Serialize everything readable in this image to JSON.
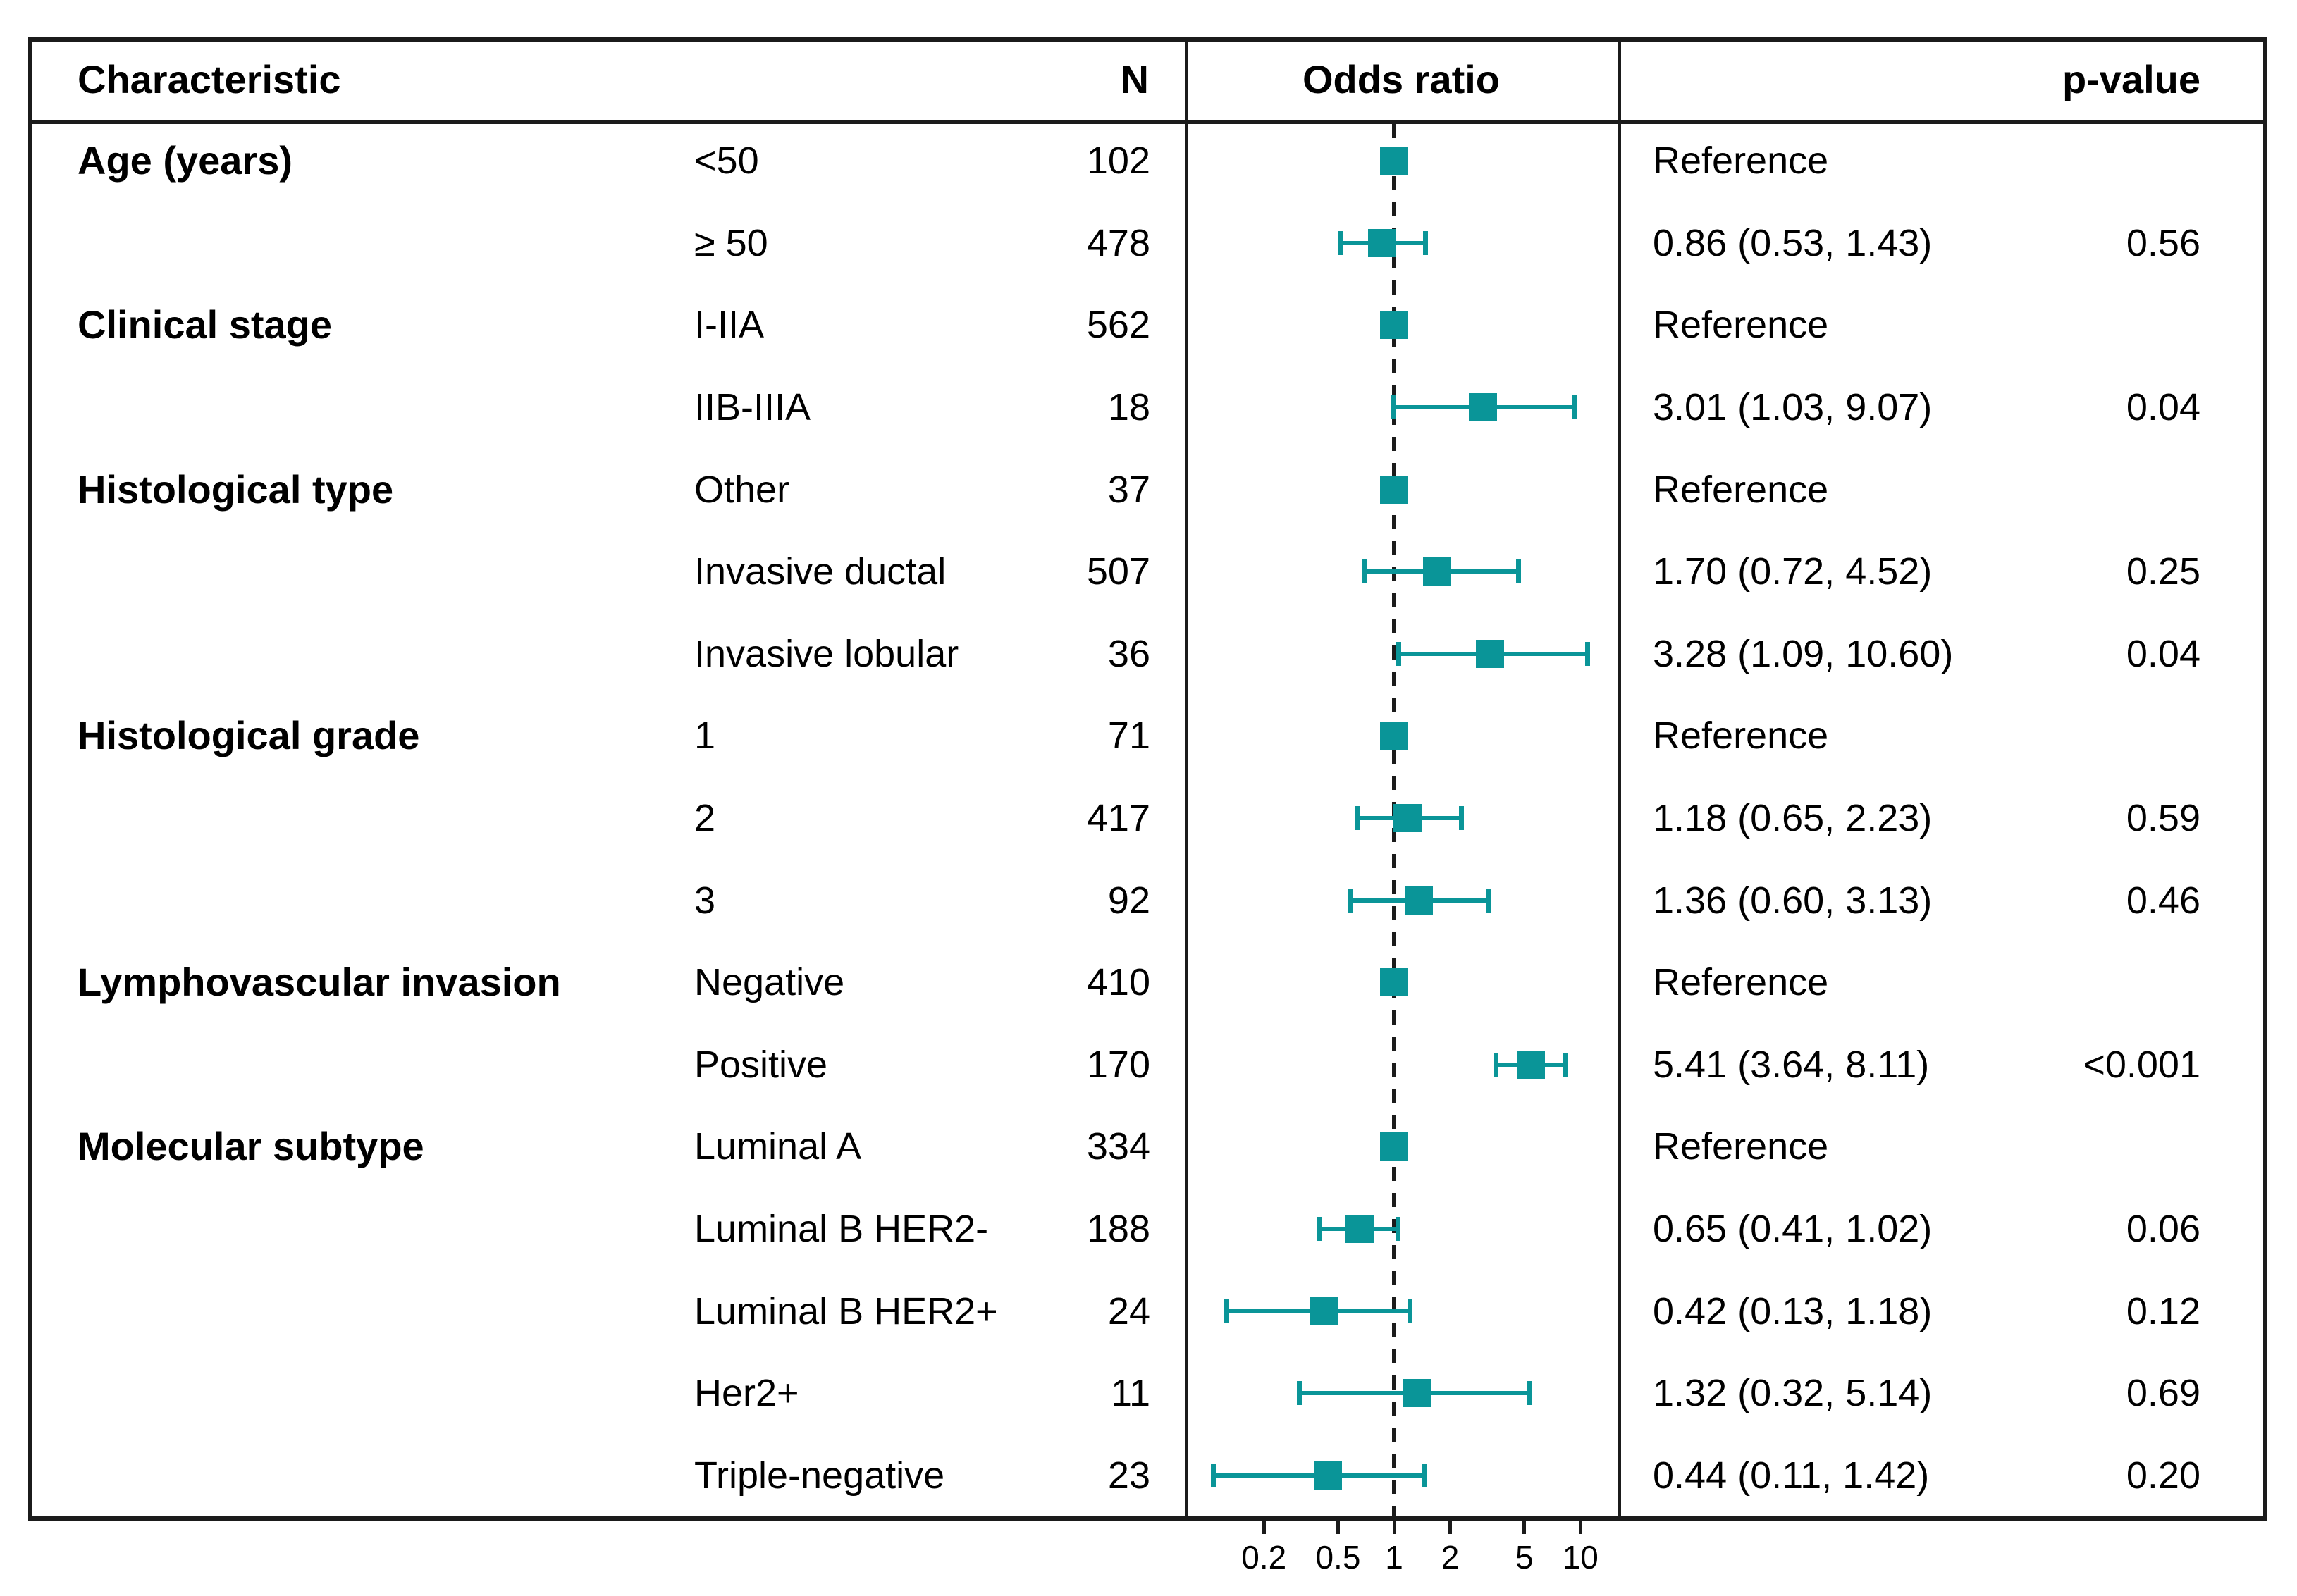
{
  "header": {
    "characteristic": "Characteristic",
    "n": "N",
    "odds_ratio": "Odds ratio",
    "p_value": "p-value"
  },
  "colors": {
    "marker_teal": "#0A9598",
    "line_black": "#1B1B1B",
    "text_black": "#000000",
    "background": "#FFFFFF"
  },
  "chart_data": {
    "type": "forest",
    "x_scale": "log",
    "reference_line": 1,
    "x_tick_values": [
      0.2,
      0.5,
      1,
      2,
      5,
      10
    ],
    "x_tick_labels": [
      "0.2",
      "0.5",
      "1",
      "2",
      "5",
      "10"
    ],
    "x_range": [
      0.1,
      12
    ],
    "legend": "none",
    "rows": [
      {
        "group": "Age (years)",
        "label": "<50",
        "n": 102,
        "or": null,
        "ci_low": null,
        "ci_high": null,
        "or_text": "Reference",
        "p": ""
      },
      {
        "group": "",
        "label": "≥ 50",
        "n": 478,
        "or": 0.86,
        "ci_low": 0.53,
        "ci_high": 1.43,
        "or_text": "0.86 (0.53, 1.43)",
        "p": "0.56"
      },
      {
        "group": "Clinical stage",
        "label": "I-IIA",
        "n": 562,
        "or": null,
        "ci_low": null,
        "ci_high": null,
        "or_text": "Reference",
        "p": ""
      },
      {
        "group": "",
        "label": "IIB-IIIA",
        "n": 18,
        "or": 3.01,
        "ci_low": 1.03,
        "ci_high": 9.07,
        "or_text": "3.01 (1.03, 9.07)",
        "p": "0.04"
      },
      {
        "group": "Histological type",
        "label": "Other",
        "n": 37,
        "or": null,
        "ci_low": null,
        "ci_high": null,
        "or_text": "Reference",
        "p": ""
      },
      {
        "group": "",
        "label": "Invasive ductal",
        "n": 507,
        "or": 1.7,
        "ci_low": 0.72,
        "ci_high": 4.52,
        "or_text": "1.70 (0.72, 4.52)",
        "p": "0.25"
      },
      {
        "group": "",
        "label": "Invasive lobular",
        "n": 36,
        "or": 3.28,
        "ci_low": 1.09,
        "ci_high": 10.6,
        "or_text": "3.28 (1.09, 10.60)",
        "p": "0.04"
      },
      {
        "group": "Histological grade",
        "label": "1",
        "n": 71,
        "or": null,
        "ci_low": null,
        "ci_high": null,
        "or_text": "Reference",
        "p": ""
      },
      {
        "group": "",
        "label": "2",
        "n": 417,
        "or": 1.18,
        "ci_low": 0.65,
        "ci_high": 2.23,
        "or_text": "1.18 (0.65, 2.23)",
        "p": "0.59"
      },
      {
        "group": "",
        "label": "3",
        "n": 92,
        "or": 1.36,
        "ci_low": 0.6,
        "ci_high": 3.13,
        "or_text": "1.36 (0.60, 3.13)",
        "p": "0.46"
      },
      {
        "group": "Lymphovascular invasion",
        "label": "Negative",
        "n": 410,
        "or": null,
        "ci_low": null,
        "ci_high": null,
        "or_text": "Reference",
        "p": ""
      },
      {
        "group": "",
        "label": "Positive",
        "n": 170,
        "or": 5.41,
        "ci_low": 3.64,
        "ci_high": 8.11,
        "or_text": "5.41 (3.64, 8.11)",
        "p": "<0.001"
      },
      {
        "group": "Molecular subtype",
        "label": "Luminal A",
        "n": 334,
        "or": null,
        "ci_low": null,
        "ci_high": null,
        "or_text": "Reference",
        "p": ""
      },
      {
        "group": "",
        "label": "Luminal B HER2-",
        "n": 188,
        "or": 0.65,
        "ci_low": 0.41,
        "ci_high": 1.02,
        "or_text": "0.65 (0.41, 1.02)",
        "p": "0.06"
      },
      {
        "group": "",
        "label": "Luminal B HER2+",
        "n": 24,
        "or": 0.42,
        "ci_low": 0.13,
        "ci_high": 1.18,
        "or_text": "0.42 (0.13, 1.18)",
        "p": "0.12"
      },
      {
        "group": "",
        "label": "Her2+",
        "n": 11,
        "or": 1.32,
        "ci_low": 0.32,
        "ci_high": 5.14,
        "or_text": "1.32 (0.32, 5.14)",
        "p": "0.69"
      },
      {
        "group": "",
        "label": "Triple-negative",
        "n": 23,
        "or": 0.44,
        "ci_low": 0.11,
        "ci_high": 1.42,
        "or_text": "0.44 (0.11, 1.42)",
        "p": "0.20"
      }
    ]
  }
}
